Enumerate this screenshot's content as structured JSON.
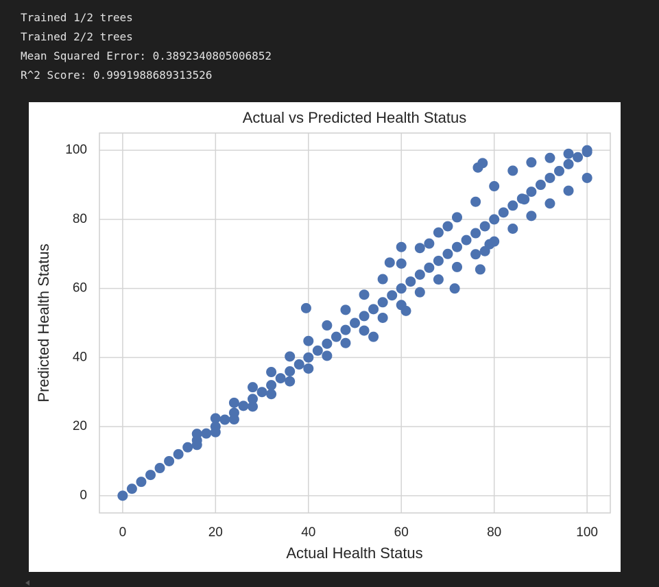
{
  "output_lines": [
    "Trained 1/2 trees",
    "Trained 2/2 trees",
    "Mean Squared Error: 0.3892340805006852",
    "R^2 Score: 0.9991988689313526"
  ],
  "chart_data": {
    "type": "scatter",
    "title": "Actual vs Predicted Health Status",
    "xlabel": "Actual Health Status",
    "ylabel": "Predicted Health Status",
    "color": "#4c72b0",
    "grid": true,
    "xlim": [
      -5,
      105
    ],
    "ylim": [
      -5,
      105
    ],
    "xticks": [
      0,
      20,
      40,
      60,
      80,
      100
    ],
    "yticks": [
      0,
      20,
      40,
      60,
      80,
      100
    ],
    "x": [
      0,
      2,
      4,
      6,
      8,
      10,
      12,
      14,
      16,
      18,
      20,
      22,
      24,
      26,
      28,
      30,
      32,
      34,
      36,
      38,
      40,
      42,
      44,
      46,
      48,
      50,
      52,
      54,
      56,
      58,
      60,
      62,
      64,
      66,
      68,
      70,
      72,
      74,
      76,
      78,
      80,
      82,
      84,
      86,
      88,
      90,
      92,
      94,
      96,
      98,
      100,
      16,
      20,
      24,
      28,
      32,
      36,
      40,
      44,
      48,
      52,
      56,
      60,
      64,
      68,
      72,
      76,
      80,
      84,
      88,
      92,
      96,
      100,
      16,
      20,
      24,
      28,
      32,
      36,
      40,
      44,
      48,
      52,
      56,
      60,
      64,
      68,
      72,
      76,
      80,
      84,
      88,
      92,
      96,
      100,
      39.5,
      54,
      61,
      71.5,
      78,
      79,
      77,
      76.5,
      77.5,
      86.5,
      66,
      60,
      57.5,
      70
    ],
    "y": [
      0,
      2,
      4,
      6,
      8,
      10,
      12,
      14,
      16,
      18,
      20,
      22,
      24,
      26,
      28,
      30,
      32,
      34,
      36,
      38,
      40,
      42,
      44,
      46,
      48,
      50,
      52,
      54,
      56,
      58,
      60,
      62,
      64,
      66,
      68,
      70,
      72,
      74,
      76,
      78,
      80,
      82,
      84,
      86,
      88,
      90,
      92,
      94,
      96,
      98,
      100,
      17.9,
      22.4,
      26.9,
      31.4,
      35.8,
      40.3,
      44.8,
      49.3,
      53.8,
      58.2,
      62.7,
      67.2,
      71.7,
      76.2,
      80.6,
      85.1,
      89.6,
      94.1,
      96.5,
      97.8,
      99,
      99.5,
      14.7,
      18.4,
      22.1,
      25.8,
      29.4,
      33.1,
      36.8,
      40.5,
      44.2,
      47.8,
      51.5,
      55.2,
      58.9,
      62.6,
      66.2,
      69.9,
      73.6,
      77.3,
      81,
      84.6,
      88.3,
      92,
      54.3,
      46,
      53.5,
      60,
      70.8,
      72.8,
      65.5,
      95,
      96.3,
      85.8,
      73,
      72,
      67.5,
      78
    ]
  }
}
